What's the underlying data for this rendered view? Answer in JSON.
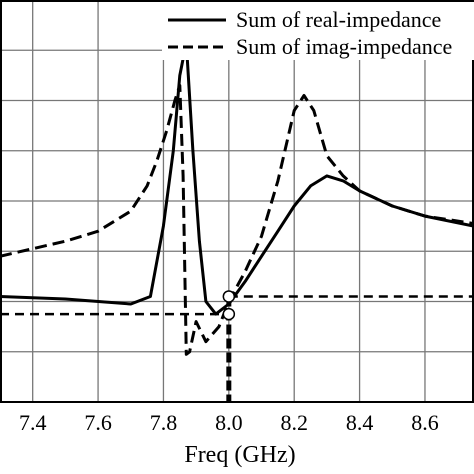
{
  "chart_data": {
    "type": "line",
    "xlabel": "Freq (GHz)",
    "ylabel": "",
    "title": "",
    "xlim": [
      7.3,
      8.75
    ],
    "ylim": [
      0,
      8
    ],
    "x_ticks": [
      7.4,
      7.6,
      7.8,
      8.0,
      8.2,
      8.4,
      8.6
    ],
    "x_tick_labels": [
      "7.4",
      "7.6",
      "7.8",
      "8.0",
      "8.2",
      "8.4",
      "8.6"
    ],
    "y_grid": [
      1,
      2,
      3,
      4,
      5,
      6,
      7
    ],
    "grid": true,
    "legend_position": "top-right",
    "series": [
      {
        "name": "Sum of real-impedance",
        "style": "solid",
        "x": [
          7.3,
          7.5,
          7.7,
          7.76,
          7.8,
          7.83,
          7.85,
          7.87,
          7.89,
          7.91,
          7.93,
          7.96,
          8.0,
          8.05,
          8.1,
          8.15,
          8.2,
          8.25,
          8.3,
          8.35,
          8.4,
          8.5,
          8.6,
          8.75
        ],
        "values": [
          2.1,
          2.05,
          1.95,
          2.1,
          3.5,
          5.0,
          6.5,
          7.15,
          5.0,
          3.2,
          2.0,
          1.75,
          1.95,
          2.4,
          2.9,
          3.4,
          3.9,
          4.3,
          4.5,
          4.4,
          4.2,
          3.9,
          3.7,
          3.5
        ]
      },
      {
        "name": "Sum of imag-impedance",
        "style": "dashed",
        "x": [
          7.3,
          7.4,
          7.5,
          7.6,
          7.7,
          7.75,
          7.78,
          7.81,
          7.835,
          7.85,
          7.86,
          7.87,
          7.88,
          7.9,
          7.93,
          7.97,
          8.0,
          8.05,
          8.1,
          8.15,
          8.2,
          8.23,
          8.26,
          8.3,
          8.35,
          8.4,
          8.5,
          8.6,
          8.75
        ],
        "values": [
          2.9,
          3.05,
          3.2,
          3.4,
          3.8,
          4.3,
          4.8,
          5.4,
          6.0,
          6.3,
          4.5,
          0.95,
          1.0,
          1.6,
          1.2,
          1.5,
          2.0,
          2.6,
          3.3,
          4.4,
          5.8,
          6.1,
          5.8,
          4.9,
          4.5,
          4.2,
          3.9,
          3.7,
          3.55
        ]
      }
    ],
    "annotations": [
      {
        "x": 8.0,
        "y": 2.1,
        "marker": "circle",
        "guide": "horizontal-dashed-right"
      },
      {
        "x": 8.0,
        "y": 1.75,
        "marker": "circle",
        "guide": "horizontal-dashed-left"
      },
      {
        "x": 8.0,
        "y": 0,
        "marker": "none",
        "guide": "vertical-dashed-bold"
      }
    ]
  }
}
